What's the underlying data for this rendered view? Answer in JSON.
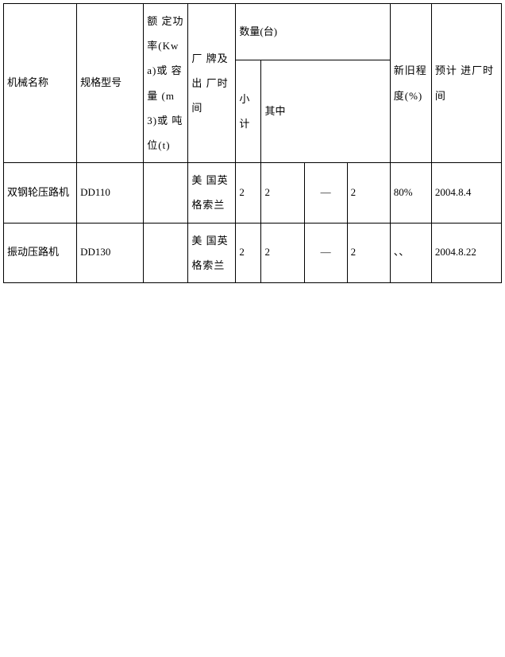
{
  "table": {
    "header": {
      "name": "机械名称",
      "model": "规格型号",
      "power": "额 定功 率(Kwa)或 容量 (m3)或 吨位(t)",
      "brand": "厂 牌及 出 厂时间",
      "qty_group": "数量(台)",
      "subtotal": "小计",
      "of_which": "其中",
      "condition": "新旧程度(%)",
      "date": "预计 进厂时间"
    },
    "rows": [
      {
        "name": "双钢轮压路机",
        "model": "DD110",
        "power": "",
        "brand": "美 国英 格索兰",
        "subtotal": "2",
        "qz1": "2",
        "qz2": "—",
        "qz3": "2",
        "condition": "80%",
        "date": "2004.8.4"
      },
      {
        "name": "振动压路机",
        "model": "DD130",
        "power": "",
        "brand": "美 国英 格索兰",
        "subtotal": "2",
        "qz1": "2",
        "qz2": "—",
        "qz3": "2",
        "condition": "、、",
        "date": "2004.8.22"
      }
    ]
  }
}
